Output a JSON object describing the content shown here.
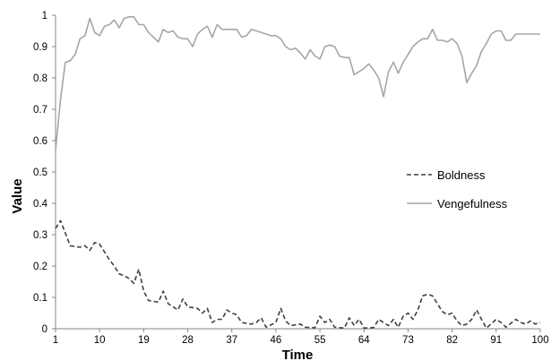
{
  "chart_data": {
    "type": "line",
    "title": "",
    "xlabel": "Time",
    "ylabel": "Value",
    "xlim": [
      1,
      100
    ],
    "ylim": [
      0,
      1
    ],
    "x_ticks": [
      "1",
      "10",
      "19",
      "28",
      "37",
      "46",
      "55",
      "64",
      "73",
      "82",
      "91",
      "100"
    ],
    "y_ticks": [
      "0",
      "0.1",
      "0.2",
      "0.3",
      "0.4",
      "0.5",
      "0.6",
      "0.7",
      "0.8",
      "0.9",
      "1"
    ],
    "grid": false,
    "legend_position": "right",
    "series": [
      {
        "name": "Boldness",
        "style": "dashed",
        "color": "#404040",
        "points": [
          [
            1,
            0.32
          ],
          [
            2,
            0.345
          ],
          [
            4,
            0.265
          ],
          [
            6,
            0.26
          ],
          [
            7,
            0.265
          ],
          [
            8,
            0.25
          ],
          [
            9,
            0.275
          ],
          [
            10,
            0.27
          ],
          [
            12,
            0.22
          ],
          [
            13,
            0.2
          ],
          [
            14,
            0.175
          ],
          [
            15,
            0.17
          ],
          [
            16,
            0.16
          ],
          [
            17,
            0.145
          ],
          [
            18,
            0.19
          ],
          [
            19,
            0.12
          ],
          [
            20,
            0.09
          ],
          [
            22,
            0.085
          ],
          [
            23,
            0.12
          ],
          [
            24,
            0.08
          ],
          [
            26,
            0.06
          ],
          [
            27,
            0.095
          ],
          [
            28,
            0.07
          ],
          [
            30,
            0.065
          ],
          [
            31,
            0.05
          ],
          [
            32,
            0.065
          ],
          [
            33,
            0.02
          ],
          [
            34,
            0.03
          ],
          [
            35,
            0.03
          ],
          [
            36,
            0.06
          ],
          [
            37,
            0.05
          ],
          [
            38,
            0.045
          ],
          [
            39,
            0.02
          ],
          [
            41,
            0.015
          ],
          [
            42,
            0.02
          ],
          [
            43,
            0.035
          ],
          [
            44,
            0.005
          ],
          [
            46,
            0.02
          ],
          [
            47,
            0.065
          ],
          [
            48,
            0.025
          ],
          [
            49,
            0.01
          ],
          [
            51,
            0.015
          ],
          [
            52,
            0.005
          ],
          [
            54,
            0.003
          ],
          [
            55,
            0.04
          ],
          [
            56,
            0.02
          ],
          [
            57,
            0.03
          ],
          [
            58,
            0.005
          ],
          [
            60,
            0.002
          ],
          [
            61,
            0.035
          ],
          [
            62,
            0.01
          ],
          [
            63,
            0.03
          ],
          [
            64,
            0.002
          ],
          [
            66,
            0.004
          ],
          [
            67,
            0.03
          ],
          [
            68,
            0.02
          ],
          [
            69,
            0.01
          ],
          [
            70,
            0.03
          ],
          [
            71,
            0.005
          ],
          [
            72,
            0.04
          ],
          [
            73,
            0.05
          ],
          [
            74,
            0.03
          ],
          [
            75,
            0.06
          ],
          [
            76,
            0.105
          ],
          [
            77,
            0.11
          ],
          [
            78,
            0.105
          ],
          [
            79,
            0.08
          ],
          [
            80,
            0.055
          ],
          [
            81,
            0.045
          ],
          [
            82,
            0.05
          ],
          [
            83,
            0.025
          ],
          [
            84,
            0.01
          ],
          [
            85,
            0.015
          ],
          [
            86,
            0.03
          ],
          [
            87,
            0.06
          ],
          [
            88,
            0.03
          ],
          [
            89,
            0.002
          ],
          [
            91,
            0.03
          ],
          [
            92,
            0.02
          ],
          [
            93,
            0.005
          ],
          [
            95,
            0.03
          ],
          [
            96,
            0.02
          ],
          [
            97,
            0.015
          ],
          [
            98,
            0.025
          ],
          [
            99,
            0.015
          ],
          [
            100,
            0.02
          ]
        ]
      },
      {
        "name": "Vengefulness",
        "style": "solid",
        "color": "#a6a6a6",
        "points": [
          [
            1,
            0.57
          ],
          [
            2,
            0.73
          ],
          [
            3,
            0.85
          ],
          [
            4,
            0.855
          ],
          [
            5,
            0.875
          ],
          [
            6,
            0.925
          ],
          [
            7,
            0.935
          ],
          [
            8,
            0.99
          ],
          [
            9,
            0.945
          ],
          [
            10,
            0.935
          ],
          [
            11,
            0.965
          ],
          [
            12,
            0.97
          ],
          [
            13,
            0.985
          ],
          [
            14,
            0.96
          ],
          [
            15,
            0.99
          ],
          [
            16,
            0.995
          ],
          [
            17,
            0.995
          ],
          [
            18,
            0.97
          ],
          [
            19,
            0.97
          ],
          [
            20,
            0.945
          ],
          [
            21,
            0.93
          ],
          [
            22,
            0.915
          ],
          [
            23,
            0.955
          ],
          [
            24,
            0.945
          ],
          [
            25,
            0.95
          ],
          [
            26,
            0.93
          ],
          [
            27,
            0.925
          ],
          [
            28,
            0.925
          ],
          [
            29,
            0.9
          ],
          [
            30,
            0.94
          ],
          [
            31,
            0.955
          ],
          [
            32,
            0.965
          ],
          [
            33,
            0.93
          ],
          [
            34,
            0.97
          ],
          [
            35,
            0.955
          ],
          [
            36,
            0.955
          ],
          [
            37,
            0.955
          ],
          [
            38,
            0.955
          ],
          [
            39,
            0.93
          ],
          [
            40,
            0.935
          ],
          [
            41,
            0.955
          ],
          [
            42,
            0.95
          ],
          [
            43,
            0.945
          ],
          [
            44,
            0.94
          ],
          [
            45,
            0.935
          ],
          [
            46,
            0.935
          ],
          [
            47,
            0.925
          ],
          [
            48,
            0.9
          ],
          [
            49,
            0.89
          ],
          [
            50,
            0.895
          ],
          [
            51,
            0.88
          ],
          [
            52,
            0.86
          ],
          [
            53,
            0.89
          ],
          [
            54,
            0.87
          ],
          [
            55,
            0.86
          ],
          [
            56,
            0.9
          ],
          [
            57,
            0.905
          ],
          [
            58,
            0.9
          ],
          [
            59,
            0.87
          ],
          [
            60,
            0.865
          ],
          [
            61,
            0.865
          ],
          [
            62,
            0.81
          ],
          [
            63,
            0.82
          ],
          [
            64,
            0.83
          ],
          [
            65,
            0.845
          ],
          [
            66,
            0.825
          ],
          [
            67,
            0.8
          ],
          [
            68,
            0.74
          ],
          [
            69,
            0.82
          ],
          [
            70,
            0.85
          ],
          [
            71,
            0.815
          ],
          [
            72,
            0.85
          ],
          [
            73,
            0.875
          ],
          [
            74,
            0.9
          ],
          [
            75,
            0.915
          ],
          [
            76,
            0.925
          ],
          [
            77,
            0.925
          ],
          [
            78,
            0.955
          ],
          [
            79,
            0.92
          ],
          [
            80,
            0.92
          ],
          [
            81,
            0.915
          ],
          [
            82,
            0.925
          ],
          [
            83,
            0.91
          ],
          [
            84,
            0.87
          ],
          [
            85,
            0.785
          ],
          [
            86,
            0.815
          ],
          [
            87,
            0.84
          ],
          [
            88,
            0.885
          ],
          [
            89,
            0.91
          ],
          [
            90,
            0.94
          ],
          [
            91,
            0.95
          ],
          [
            92,
            0.95
          ],
          [
            93,
            0.92
          ],
          [
            94,
            0.92
          ],
          [
            95,
            0.94
          ],
          [
            96,
            0.94
          ],
          [
            97,
            0.94
          ],
          [
            98,
            0.94
          ],
          [
            99,
            0.94
          ],
          [
            100,
            0.94
          ]
        ]
      }
    ]
  }
}
